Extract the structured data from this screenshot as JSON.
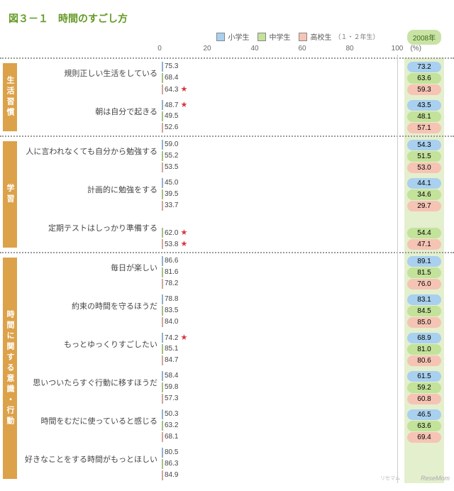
{
  "title": "図３－１　時間のすごし方",
  "legend": [
    {
      "label": "小学生",
      "color": "#a9d0ef"
    },
    {
      "label": "中学生",
      "color": "#c3e29a"
    },
    {
      "label": "高校生",
      "note": "（１・２年生）",
      "color": "#f6c4b4"
    }
  ],
  "axis": {
    "min": 0,
    "max": 100,
    "step": 20,
    "unit": "(%)"
  },
  "year_col_header": "2008年",
  "colors": {
    "series": [
      "#a9d0ef",
      "#c3e29a",
      "#f6c4b4"
    ],
    "year_pill": [
      "#a9d0ef",
      "#c3e29a",
      "#f6c4b4"
    ],
    "cat_tab": "#dca24a",
    "title": "#659a27",
    "year_col_bg": "#e4efce",
    "year_header_bg": "#c9e3a6"
  },
  "sections": [
    {
      "category": "生活習慣",
      "groups": [
        {
          "label": "規則正しい生活をしている",
          "bars": [
            {
              "v": 75.3
            },
            {
              "v": 68.4
            },
            {
              "v": 64.3,
              "star": true
            }
          ],
          "y2008": [
            73.2,
            63.6,
            59.3
          ]
        },
        {
          "label": "朝は自分で起きる",
          "bars": [
            {
              "v": 48.7,
              "star": true
            },
            {
              "v": 49.5
            },
            {
              "v": 52.6
            }
          ],
          "y2008": [
            43.5,
            48.1,
            57.1
          ]
        }
      ]
    },
    {
      "category": "学習",
      "groups": [
        {
          "label": "人に言われなくても自分から勉強する",
          "bars": [
            {
              "v": 59.0
            },
            {
              "v": 55.2
            },
            {
              "v": 53.5
            }
          ],
          "y2008": [
            54.3,
            51.5,
            53.0
          ]
        },
        {
          "label": "計画的に勉強をする",
          "bars": [
            {
              "v": 45.0
            },
            {
              "v": 39.5
            },
            {
              "v": 33.7
            }
          ],
          "y2008": [
            44.1,
            34.6,
            29.7
          ]
        },
        {
          "label": "定期テストはしっかり準備する",
          "bars": [
            {
              "v": null
            },
            {
              "v": 62.0,
              "star": true
            },
            {
              "v": 53.8,
              "star": true
            }
          ],
          "y2008": [
            null,
            54.4,
            47.1
          ]
        }
      ]
    },
    {
      "category": "時間に関する意識・行動",
      "groups": [
        {
          "label": "毎日が楽しい",
          "bars": [
            {
              "v": 86.6
            },
            {
              "v": 81.6
            },
            {
              "v": 78.2
            }
          ],
          "y2008": [
            89.1,
            81.5,
            76.0
          ]
        },
        {
          "label": "約束の時間を守るほうだ",
          "bars": [
            {
              "v": 78.8
            },
            {
              "v": 83.5
            },
            {
              "v": 84.0
            }
          ],
          "y2008": [
            83.1,
            84.5,
            85.0
          ]
        },
        {
          "label": "もっとゆっくりすごしたい",
          "bars": [
            {
              "v": 74.2,
              "star": true
            },
            {
              "v": 85.1
            },
            {
              "v": 84.7
            }
          ],
          "y2008": [
            68.9,
            81.0,
            80.6
          ]
        },
        {
          "label": "思いついたらすぐ行動に移すほうだ",
          "bars": [
            {
              "v": 58.4
            },
            {
              "v": 59.8
            },
            {
              "v": 57.3
            }
          ],
          "y2008": [
            61.5,
            59.2,
            60.8
          ]
        },
        {
          "label": "時間をむだに使っていると感じる",
          "bars": [
            {
              "v": 50.3
            },
            {
              "v": 63.2
            },
            {
              "v": 68.1
            }
          ],
          "y2008": [
            46.5,
            63.6,
            69.4
          ]
        },
        {
          "label": "好きなことをする時間がもっとほしい",
          "bars": [
            {
              "v": 80.5
            },
            {
              "v": 86.3
            },
            {
              "v": 84.9
            }
          ],
          "y2008": [
            null,
            null,
            null
          ]
        }
      ]
    }
  ],
  "watermark": "ReseMom",
  "source_note": "リセマム"
}
